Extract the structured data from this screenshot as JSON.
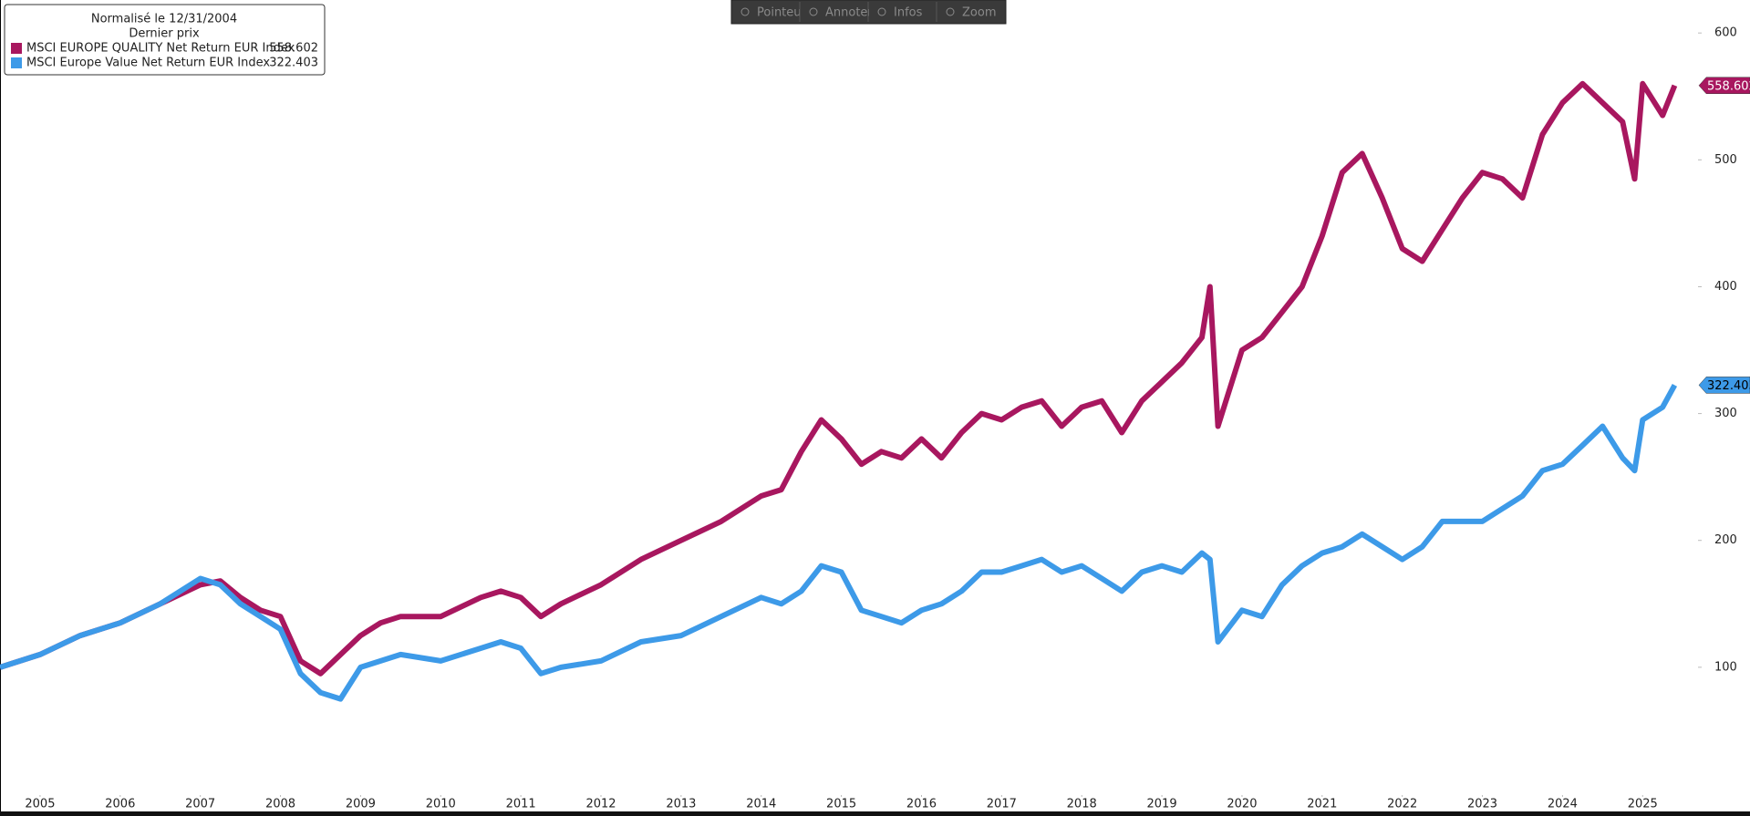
{
  "toolbar": [
    "Pointeur",
    "Annoter",
    "Infos",
    "Zoom"
  ],
  "chart_data": {
    "type": "line",
    "legend_title": "Normalisé le 12/31/2004",
    "legend_subtitle": "Dernier prix",
    "x": [
      2005,
      2005.5,
      2006,
      2006.5,
      2007,
      2007.5,
      2007.75,
      2008,
      2008.25,
      2008.5,
      2008.75,
      2009,
      2009.25,
      2009.5,
      2009.75,
      2010,
      2010.5,
      2011,
      2011.25,
      2011.5,
      2011.75,
      2012,
      2012.5,
      2013,
      2013.5,
      2014,
      2014.5,
      2014.75,
      2015,
      2015.25,
      2015.5,
      2015.75,
      2016,
      2016.25,
      2016.5,
      2016.75,
      2017,
      2017.25,
      2017.5,
      2017.75,
      2018,
      2018.25,
      2018.5,
      2018.75,
      2019,
      2019.25,
      2019.5,
      2019.75,
      2020,
      2020.1,
      2020.2,
      2020.5,
      2020.75,
      2021,
      2021.25,
      2021.5,
      2021.75,
      2022,
      2022.25,
      2022.5,
      2022.75,
      2023,
      2023.25,
      2023.5,
      2023.75,
      2024,
      2024.25,
      2024.5,
      2024.75,
      2025,
      2025.25,
      2025.4,
      2025.5,
      2025.75,
      2025.9
    ],
    "series": [
      {
        "name": "MSCI EUROPE QUALITY Net Return EUR Index",
        "color": "#a8175f",
        "values": [
          100,
          110,
          125,
          135,
          150,
          165,
          168,
          155,
          145,
          140,
          105,
          95,
          110,
          125,
          135,
          140,
          140,
          155,
          160,
          155,
          140,
          150,
          165,
          185,
          200,
          215,
          235,
          240,
          270,
          295,
          280,
          260,
          270,
          265,
          280,
          265,
          285,
          300,
          295,
          305,
          310,
          290,
          305,
          310,
          285,
          310,
          325,
          340,
          360,
          400,
          290,
          350,
          360,
          380,
          400,
          440,
          490,
          505,
          470,
          430,
          420,
          445,
          470,
          490,
          485,
          470,
          520,
          545,
          560,
          545,
          530,
          485,
          560,
          535,
          558.602
        ]
      },
      {
        "name": "MSCI Europe Value Net Return EUR Index",
        "color": "#3d9ae8",
        "values": [
          100,
          110,
          125,
          135,
          150,
          170,
          165,
          150,
          140,
          130,
          95,
          80,
          75,
          100,
          105,
          110,
          105,
          115,
          120,
          115,
          95,
          100,
          105,
          120,
          125,
          140,
          155,
          150,
          160,
          180,
          175,
          145,
          140,
          135,
          145,
          150,
          160,
          175,
          175,
          180,
          185,
          175,
          180,
          170,
          160,
          175,
          180,
          175,
          190,
          185,
          120,
          145,
          140,
          165,
          180,
          190,
          195,
          205,
          195,
          185,
          195,
          215,
          215,
          215,
          225,
          235,
          255,
          260,
          275,
          290,
          265,
          255,
          295,
          305,
          322.403
        ]
      }
    ],
    "xlim": [
      2005,
      2026.1
    ],
    "xticks": [
      {
        "value": 2005.5,
        "label": "2005"
      },
      {
        "value": 2006.5,
        "label": "2006"
      },
      {
        "value": 2007.5,
        "label": "2007"
      },
      {
        "value": 2008.5,
        "label": "2008"
      },
      {
        "value": 2009.5,
        "label": "2009"
      },
      {
        "value": 2010.5,
        "label": "2010"
      },
      {
        "value": 2011.5,
        "label": "2011"
      },
      {
        "value": 2012.5,
        "label": "2012"
      },
      {
        "value": 2013.5,
        "label": "2013"
      },
      {
        "value": 2014.5,
        "label": "2014"
      },
      {
        "value": 2015.5,
        "label": "2015"
      },
      {
        "value": 2016.5,
        "label": "2016"
      },
      {
        "value": 2017.5,
        "label": "2017"
      },
      {
        "value": 2018.5,
        "label": "2018"
      },
      {
        "value": 2019.5,
        "label": "2019"
      },
      {
        "value": 2020.5,
        "label": "2020"
      },
      {
        "value": 2021.5,
        "label": "2021"
      },
      {
        "value": 2022.5,
        "label": "2022"
      },
      {
        "value": 2023.5,
        "label": "2023"
      },
      {
        "value": 2024.5,
        "label": "2024"
      },
      {
        "value": 2025.5,
        "label": "2025"
      }
    ],
    "ylim": [
      0,
      626
    ],
    "yticks": [
      100,
      200,
      300,
      400,
      500,
      600
    ]
  }
}
